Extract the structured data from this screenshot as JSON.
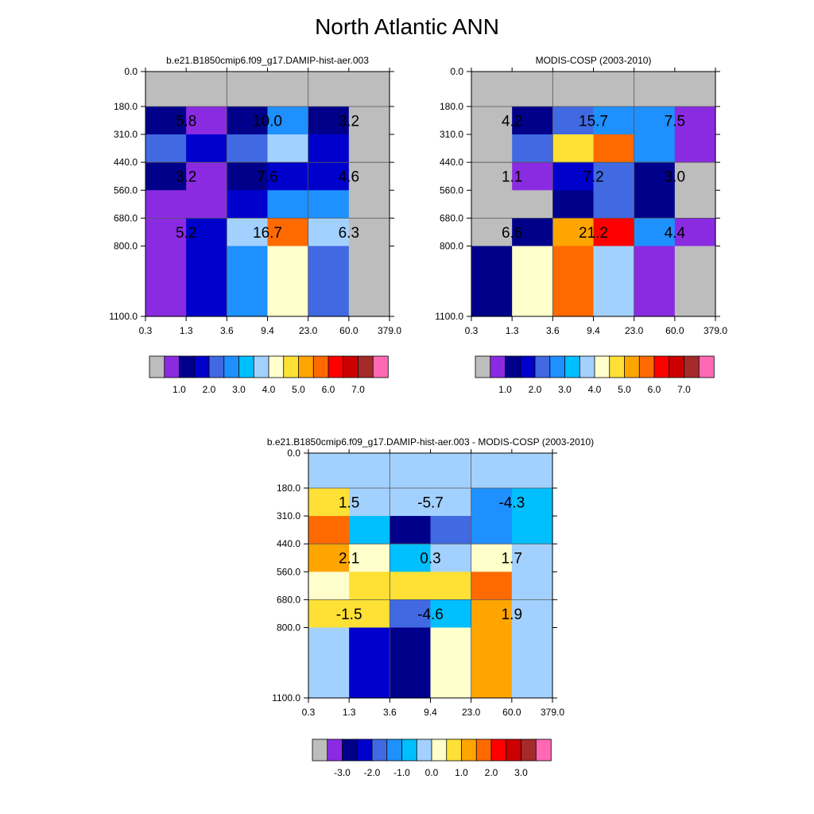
{
  "page": {
    "title": "North Atlantic ANN"
  },
  "palette": {
    "model_obs": [
      "#bdbdbd",
      "#8a2be2",
      "#00008b",
      "#0000cd",
      "#4169e1",
      "#1e90ff",
      "#00bfff",
      "#a3d1ff",
      "#ffffcc",
      "#ffe135",
      "#ffa500",
      "#ff6a00",
      "#ff0000",
      "#cc0000",
      "#a52a2a",
      "#ff69b4"
    ],
    "diff": [
      "#bdbdbd",
      "#8a2be2",
      "#00008b",
      "#0000cd",
      "#4169e1",
      "#1e90ff",
      "#00bfff",
      "#a3d1ff",
      "#ffffcc",
      "#ffe135",
      "#ffa500",
      "#ff6a00",
      "#ff0000",
      "#cc0000",
      "#a52a2a",
      "#ff69b4"
    ]
  },
  "chart_data": [
    {
      "type": "heatmap",
      "id": "model",
      "title": "b.e21.B1850cmip6.f09_g17.DAMIP-hist-aer.003",
      "xlabel": "",
      "ylabel": "",
      "x_tick_labels": [
        "0.3",
        "1.3",
        "3.6",
        "9.4",
        "23.0",
        "60.0",
        "379.0"
      ],
      "y_tick_labels": [
        "0.0",
        "180.0",
        "310.0",
        "440.0",
        "560.0",
        "680.0",
        "800.0",
        "1100.0"
      ],
      "cells": [
        [
          0,
          0,
          0,
          0,
          0,
          0
        ],
        [
          2,
          1,
          2,
          5,
          2,
          0
        ],
        [
          4,
          3,
          4,
          7,
          3,
          0
        ],
        [
          2,
          1,
          2,
          3,
          3,
          0
        ],
        [
          1,
          1,
          3,
          5,
          5,
          0
        ],
        [
          1,
          3,
          7,
          11,
          7,
          0
        ],
        [
          1,
          3,
          5,
          8,
          4,
          0
        ]
      ],
      "annotations": [
        {
          "row": 1.5,
          "col": 1,
          "label": "5.8"
        },
        {
          "row": 1.5,
          "col": 3,
          "label": "10.0"
        },
        {
          "row": 1.5,
          "col": 5,
          "label": "3.2"
        },
        {
          "row": 3.5,
          "col": 1,
          "label": "3.2"
        },
        {
          "row": 3.5,
          "col": 3,
          "label": "7.6"
        },
        {
          "row": 3.5,
          "col": 5,
          "label": "4.6"
        },
        {
          "row": 5.5,
          "col": 1,
          "label": "5.2"
        },
        {
          "row": 5.5,
          "col": 3,
          "label": "16.7"
        },
        {
          "row": 5.5,
          "col": 5,
          "label": "6.3"
        }
      ],
      "colorbar_labels": [
        "1.0",
        "2.0",
        "3.0",
        "4.0",
        "5.0",
        "6.0",
        "7.0"
      ]
    },
    {
      "type": "heatmap",
      "id": "obs",
      "title": "MODIS-COSP (2003-2010)",
      "xlabel": "",
      "ylabel": "",
      "x_tick_labels": [
        "0.3",
        "1.3",
        "3.6",
        "9.4",
        "23.0",
        "60.0",
        "379.0"
      ],
      "y_tick_labels": [
        "0.0",
        "180.0",
        "310.0",
        "440.0",
        "560.0",
        "680.0",
        "800.0",
        "1100.0"
      ],
      "cells": [
        [
          0,
          0,
          0,
          0,
          0,
          0
        ],
        [
          0,
          2,
          4,
          5,
          5,
          1
        ],
        [
          0,
          4,
          9,
          11,
          5,
          1
        ],
        [
          0,
          1,
          3,
          4,
          2,
          0
        ],
        [
          0,
          0,
          2,
          4,
          2,
          0
        ],
        [
          0,
          2,
          10,
          12,
          5,
          1
        ],
        [
          2,
          8,
          11,
          7,
          1,
          0
        ]
      ],
      "annotations": [
        {
          "row": 1.5,
          "col": 1,
          "label": "4.2"
        },
        {
          "row": 1.5,
          "col": 3,
          "label": "15.7"
        },
        {
          "row": 1.5,
          "col": 5,
          "label": "7.5"
        },
        {
          "row": 3.5,
          "col": 1,
          "label": "1.1"
        },
        {
          "row": 3.5,
          "col": 3,
          "label": "7.2"
        },
        {
          "row": 3.5,
          "col": 5,
          "label": "3.0"
        },
        {
          "row": 5.5,
          "col": 1,
          "label": "6.6"
        },
        {
          "row": 5.5,
          "col": 3,
          "label": "21.2"
        },
        {
          "row": 5.5,
          "col": 5,
          "label": "4.4"
        }
      ],
      "colorbar_labels": [
        "1.0",
        "2.0",
        "3.0",
        "4.0",
        "5.0",
        "6.0",
        "7.0"
      ]
    },
    {
      "type": "heatmap",
      "id": "diff",
      "title": "b.e21.B1850cmip6.f09_g17.DAMIP-hist-aer.003 - MODIS-COSP (2003-2010)",
      "xlabel": "",
      "ylabel": "",
      "x_tick_labels": [
        "0.3",
        "1.3",
        "3.6",
        "9.4",
        "23.0",
        "60.0",
        "379.0"
      ],
      "y_tick_labels": [
        "0.0",
        "180.0",
        "310.0",
        "440.0",
        "560.0",
        "680.0",
        "800.0",
        "1100.0"
      ],
      "cells": [
        [
          7,
          7,
          7,
          7,
          7,
          7
        ],
        [
          9,
          7,
          7,
          7,
          5,
          6
        ],
        [
          11,
          6,
          2,
          4,
          5,
          6
        ],
        [
          10,
          8,
          6,
          7,
          8,
          7
        ],
        [
          8,
          9,
          9,
          9,
          11,
          7
        ],
        [
          9,
          9,
          4,
          6,
          10,
          7
        ],
        [
          7,
          3,
          2,
          8,
          10,
          7
        ]
      ],
      "annotations": [
        {
          "row": 1.5,
          "col": 1,
          "label": "1.5"
        },
        {
          "row": 1.5,
          "col": 3,
          "label": "-5.7"
        },
        {
          "row": 1.5,
          "col": 5,
          "label": "-4.3"
        },
        {
          "row": 3.5,
          "col": 1,
          "label": "2.1"
        },
        {
          "row": 3.5,
          "col": 3,
          "label": "0.3"
        },
        {
          "row": 3.5,
          "col": 5,
          "label": "1.7"
        },
        {
          "row": 5.5,
          "col": 1,
          "label": "-1.5"
        },
        {
          "row": 5.5,
          "col": 3,
          "label": "-4.6"
        },
        {
          "row": 5.5,
          "col": 5,
          "label": "1.9"
        }
      ],
      "colorbar_labels": [
        "-3.0",
        "-2.0",
        "-1.0",
        "0.0",
        "1.0",
        "2.0",
        "3.0"
      ]
    }
  ]
}
